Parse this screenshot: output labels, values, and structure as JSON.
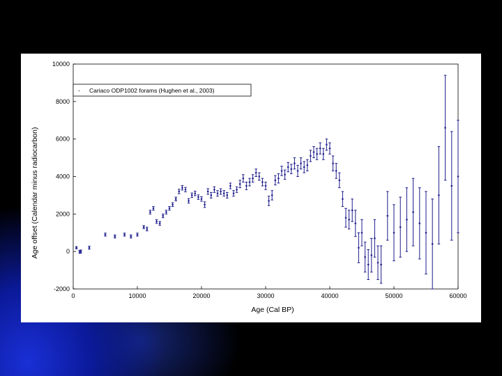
{
  "chart_data": {
    "type": "scatter",
    "xlabel": "Age (Cal BP)",
    "ylabel": "Age offset (Calendar minus radiocarbon)",
    "xlim": [
      0,
      60000
    ],
    "ylim": [
      -2000,
      10000
    ],
    "xticks": [
      "0",
      "10000",
      "20000",
      "30000",
      "40000",
      "50000",
      "60000"
    ],
    "yticks": [
      "-2000",
      "0",
      "2000",
      "4000",
      "6000",
      "8000",
      "10000"
    ],
    "legend_position": "top-left",
    "grid": false,
    "colors": {
      "points": "#1c1c8c",
      "error_bars": "#1c1c8c"
    },
    "series": [
      {
        "name": "Cariaco ODP1002 forams (Hughen et al., 2003)",
        "points": [
          [
            500,
            200,
            60
          ],
          [
            1000,
            -20,
            80
          ],
          [
            1200,
            0,
            80
          ],
          [
            2500,
            200,
            80
          ],
          [
            5000,
            900,
            80
          ],
          [
            6500,
            800,
            80
          ],
          [
            8000,
            900,
            80
          ],
          [
            9000,
            800,
            80
          ],
          [
            10000,
            900,
            80
          ],
          [
            11000,
            1300,
            80
          ],
          [
            11500,
            1200,
            100
          ],
          [
            12000,
            2100,
            100
          ],
          [
            12500,
            2300,
            100
          ],
          [
            13000,
            1600,
            100
          ],
          [
            13500,
            1500,
            100
          ],
          [
            14000,
            1900,
            100
          ],
          [
            14500,
            2100,
            100
          ],
          [
            15000,
            2300,
            100
          ],
          [
            15500,
            2500,
            100
          ],
          [
            16000,
            2800,
            100
          ],
          [
            16500,
            3200,
            120
          ],
          [
            17000,
            3400,
            120
          ],
          [
            17500,
            3300,
            120
          ],
          [
            18000,
            2700,
            120
          ],
          [
            18500,
            3000,
            120
          ],
          [
            19000,
            3100,
            120
          ],
          [
            19500,
            2900,
            120
          ],
          [
            20000,
            2800,
            120
          ],
          [
            20500,
            2500,
            150
          ],
          [
            21000,
            3200,
            150
          ],
          [
            21500,
            3000,
            150
          ],
          [
            22000,
            3300,
            150
          ],
          [
            22500,
            3100,
            150
          ],
          [
            23000,
            3200,
            150
          ],
          [
            23500,
            3100,
            150
          ],
          [
            24000,
            3000,
            150
          ],
          [
            24500,
            3500,
            150
          ],
          [
            25000,
            3100,
            150
          ],
          [
            25500,
            3300,
            150
          ],
          [
            26000,
            3600,
            200
          ],
          [
            26500,
            3900,
            200
          ],
          [
            27000,
            3500,
            200
          ],
          [
            27500,
            3700,
            200
          ],
          [
            28000,
            3900,
            200
          ],
          [
            28500,
            4200,
            200
          ],
          [
            29000,
            4000,
            200
          ],
          [
            29500,
            3700,
            200
          ],
          [
            30000,
            3500,
            200
          ],
          [
            30500,
            2700,
            250
          ],
          [
            31000,
            3000,
            250
          ],
          [
            31500,
            3800,
            250
          ],
          [
            32000,
            3900,
            250
          ],
          [
            32500,
            4300,
            250
          ],
          [
            33000,
            4100,
            250
          ],
          [
            33500,
            4500,
            250
          ],
          [
            34000,
            4400,
            250
          ],
          [
            34500,
            4700,
            300
          ],
          [
            35000,
            4300,
            300
          ],
          [
            35500,
            4700,
            300
          ],
          [
            36000,
            4500,
            300
          ],
          [
            36500,
            4600,
            300
          ],
          [
            37000,
            5100,
            300
          ],
          [
            37500,
            5300,
            300
          ],
          [
            38000,
            5200,
            300
          ],
          [
            38500,
            5500,
            300
          ],
          [
            39000,
            5200,
            300
          ],
          [
            39500,
            5700,
            300
          ],
          [
            40000,
            5500,
            300
          ],
          [
            40500,
            4700,
            400
          ],
          [
            41000,
            4300,
            400
          ],
          [
            41500,
            3800,
            400
          ],
          [
            42000,
            2800,
            400
          ],
          [
            42500,
            1800,
            500
          ],
          [
            43000,
            1700,
            500
          ],
          [
            43500,
            2200,
            600
          ],
          [
            44000,
            1500,
            700
          ],
          [
            44500,
            200,
            800
          ],
          [
            45000,
            1000,
            700
          ],
          [
            45500,
            -300,
            800
          ],
          [
            46000,
            -700,
            800
          ],
          [
            46500,
            -200,
            900
          ],
          [
            47000,
            700,
            1000
          ],
          [
            47500,
            -600,
            900
          ],
          [
            48000,
            -700,
            1000
          ],
          [
            49000,
            1900,
            1300
          ],
          [
            50000,
            1000,
            1500
          ],
          [
            51000,
            1300,
            1600
          ],
          [
            52000,
            1700,
            1700
          ],
          [
            53000,
            2100,
            1800
          ],
          [
            54000,
            1500,
            1900
          ],
          [
            55000,
            1000,
            2200
          ],
          [
            56000,
            400,
            2400
          ],
          [
            57000,
            3000,
            2600
          ],
          [
            58000,
            6600,
            2800
          ],
          [
            59000,
            3500,
            2900
          ],
          [
            60000,
            4000,
            3000
          ]
        ]
      }
    ]
  }
}
